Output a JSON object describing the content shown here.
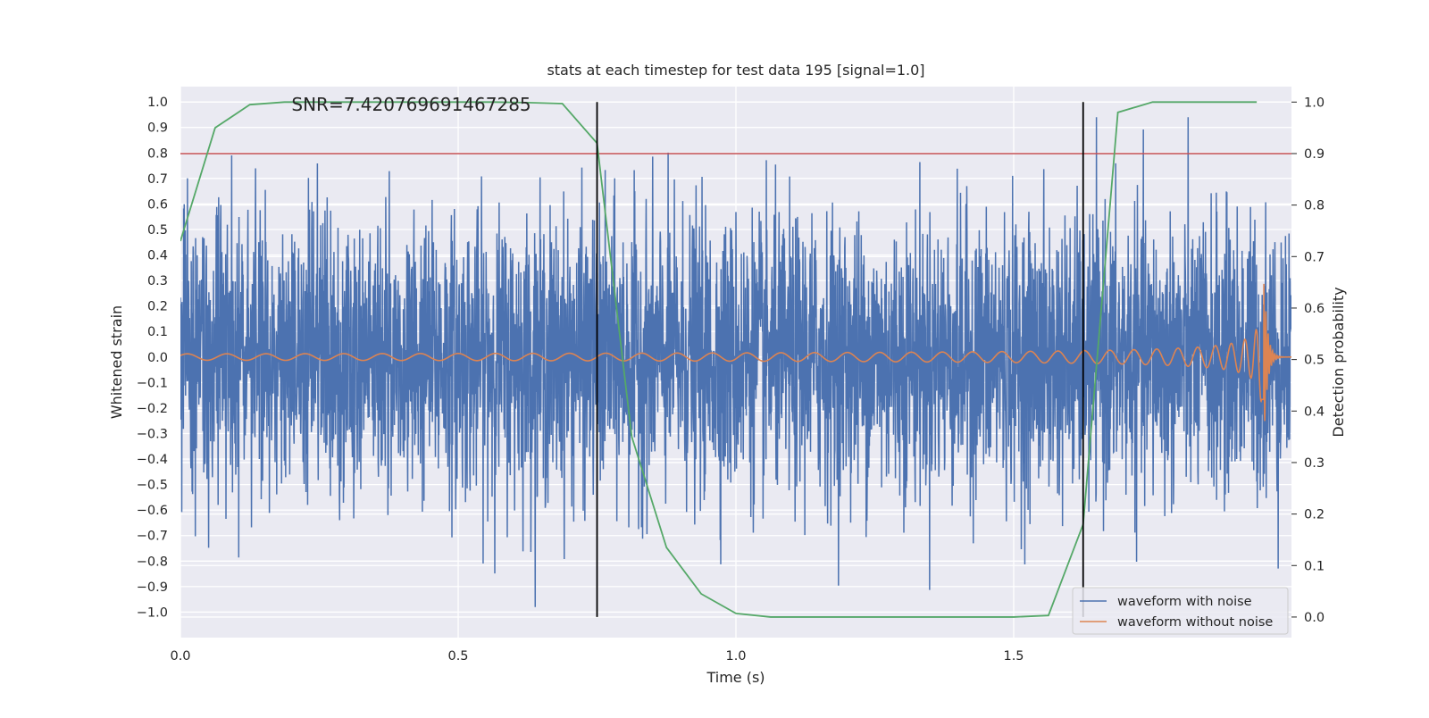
{
  "chart_data": {
    "type": "line",
    "title": "stats at each timestep for test data 195 [signal=1.0]",
    "xlabel": "Time (s)",
    "ylabel_left": "Whitened strain",
    "ylabel_right": "Detection probability",
    "xlim": [
      0.0,
      2.0
    ],
    "ylim_left": [
      -1.1,
      1.06
    ],
    "ylim_right": [
      -0.04,
      1.03
    ],
    "x_ticks": [
      0.0,
      0.5,
      1.0,
      1.5
    ],
    "x_tick_labels": [
      "0.0",
      "0.5",
      "1.0",
      "1.5"
    ],
    "y_left_ticks": [
      -1.0,
      -0.9,
      -0.8,
      -0.7,
      -0.6,
      -0.5,
      -0.4,
      -0.3,
      -0.2,
      -0.1,
      0.0,
      0.1,
      0.2,
      0.3,
      0.4,
      0.5,
      0.6,
      0.7,
      0.8,
      0.9,
      1.0
    ],
    "y_left_tick_labels": [
      "−1.0",
      "−0.9",
      "−0.8",
      "−0.7",
      "−0.6",
      "−0.5",
      "−0.4",
      "−0.3",
      "−0.2",
      "−0.1",
      "0.0",
      "0.1",
      "0.2",
      "0.3",
      "0.4",
      "0.5",
      "0.6",
      "0.7",
      "0.8",
      "0.9",
      "1.0"
    ],
    "y_right_ticks": [
      0.0,
      0.1,
      0.2,
      0.3,
      0.4,
      0.5,
      0.6,
      0.7,
      0.8,
      0.9,
      1.0
    ],
    "y_right_tick_labels": [
      "0.0",
      "0.1",
      "0.2",
      "0.3",
      "0.4",
      "0.5",
      "0.6",
      "0.7",
      "0.8",
      "0.9",
      "1.0"
    ],
    "grid": true,
    "legend_position": "lower-right",
    "annotation": "SNR=7.420769691467285",
    "threshold": 0.9,
    "vertical_lines_x": [
      0.75,
      1.625
    ],
    "vertical_lines_range": [
      0.0,
      1.0
    ],
    "series": [
      {
        "name": "waveform with noise",
        "axis": "left",
        "color": "#4c72b0",
        "kind": "noise",
        "amplitude_range": [
          -0.98,
          0.94
        ],
        "sample_rate_hz": 2048
      },
      {
        "name": "waveform without noise",
        "axis": "left",
        "color": "#dd8452",
        "kind": "chirp",
        "amplitude_range": [
          -0.36,
          0.43
        ],
        "merger_time_s": 1.95
      },
      {
        "name": "",
        "axis": "right",
        "color": "#55a868",
        "kind": "detection-probability",
        "x": [
          0.0,
          0.0625,
          0.125,
          0.1875,
          0.25,
          0.3125,
          0.375,
          0.4375,
          0.5,
          0.5625,
          0.625,
          0.6875,
          0.75,
          0.8125,
          0.875,
          0.9375,
          1.0,
          1.0625,
          1.125,
          1.1875,
          1.25,
          1.3125,
          1.375,
          1.4375,
          1.5,
          1.5625,
          1.625,
          1.6875,
          1.75,
          1.8125,
          1.875,
          1.9375
        ],
        "y": [
          0.73,
          0.95,
          0.995,
          1.0,
          1.0,
          1.0,
          1.0,
          1.0,
          1.0,
          1.0,
          0.999,
          0.997,
          0.92,
          0.35,
          0.135,
          0.045,
          0.007,
          0.0,
          0.0,
          0.0,
          0.0,
          0.0,
          0.0,
          0.0,
          0.0,
          0.003,
          0.18,
          0.98,
          1.0,
          1.0,
          1.0,
          1.0
        ]
      },
      {
        "name": "",
        "axis": "right",
        "color": "#c44e52",
        "kind": "threshold",
        "x": [
          0.0,
          2.0
        ],
        "y": [
          0.9,
          0.9
        ]
      }
    ]
  }
}
